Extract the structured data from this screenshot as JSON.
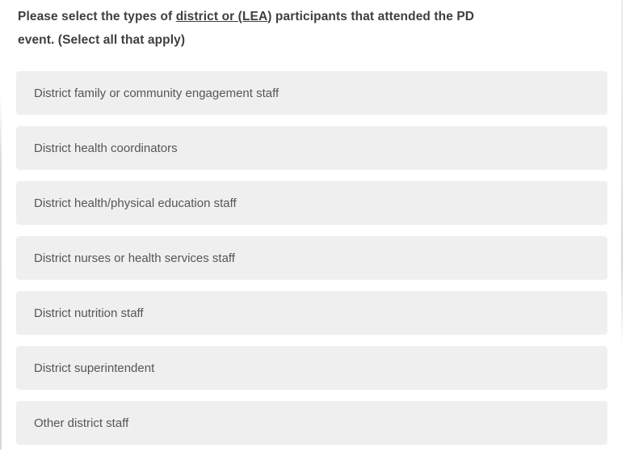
{
  "question": {
    "line1_pre": "Please select the types of ",
    "line1_link": "district or (LEA",
    "line1_post": ") participants that attended the PD",
    "line2": "event. (Select all that apply)"
  },
  "options": [
    {
      "label": "District family or community engagement staff"
    },
    {
      "label": "District health coordinators"
    },
    {
      "label": "District health/physical education staff"
    },
    {
      "label": "District nurses or health services staff"
    },
    {
      "label": "District nutrition staff"
    },
    {
      "label": "District superintendent"
    },
    {
      "label": "Other district staff"
    }
  ],
  "colors": {
    "option_background": "#efefef",
    "option_text": "#565656",
    "question_text": "#3f3f3f",
    "page_background": "#ffffff",
    "scrollbar_line": "#d6d6d6"
  }
}
